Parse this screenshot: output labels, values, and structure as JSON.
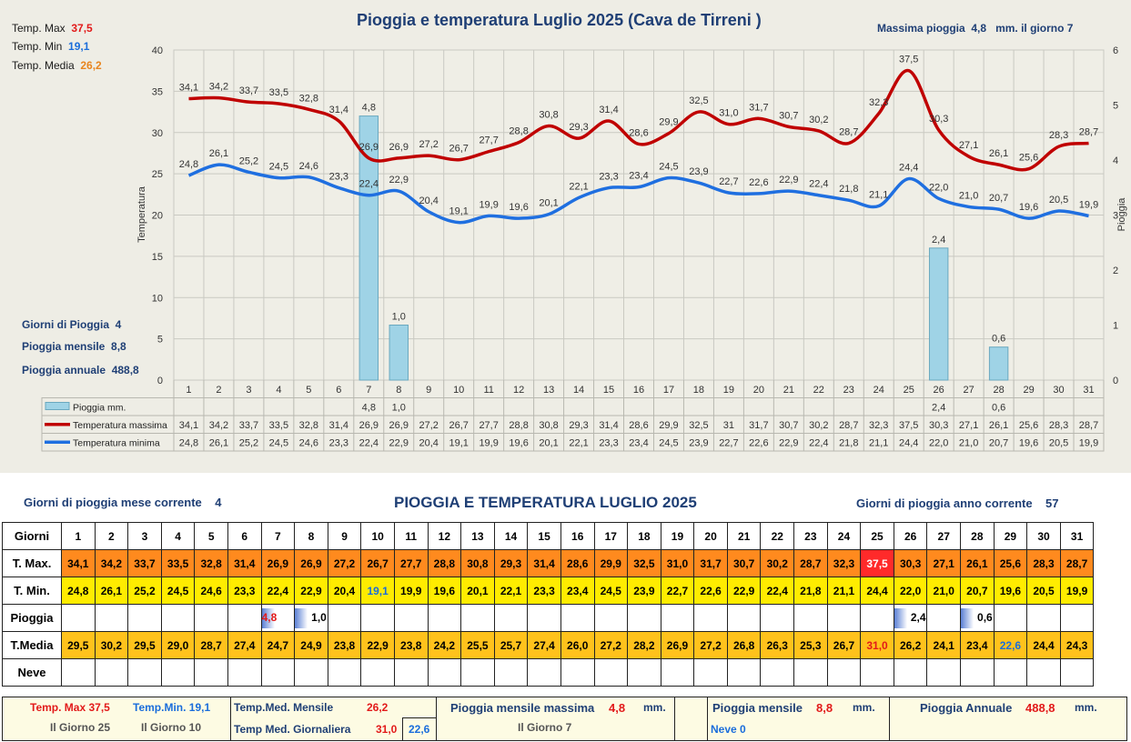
{
  "chart_title": "Pioggia e temperatura Luglio 2025 (Cava de Tirreni )",
  "max_rain_label": "Massima pioggia",
  "max_rain_value": "4,8",
  "max_rain_suffix": "mm. il giorno 7",
  "stats": {
    "tmax_label": "Temp. Max",
    "tmax_value": "37,5",
    "tmin_label": "Temp. Min",
    "tmin_value": "19,1",
    "tmed_label": "Temp. Media",
    "tmed_value": "26,2",
    "rain_days_label": "Giorni di Pioggia",
    "rain_days_value": "4",
    "monthly_label": "Pioggia mensile",
    "monthly_value": "8,8",
    "annual_label": "Pioggia annuale",
    "annual_value": "488,8"
  },
  "chart_data": {
    "type": "bar+line",
    "title": "Pioggia e temperatura Luglio 2025 (Cava de Tirreni )",
    "ylabel": "Temperatura",
    "y2label": "Pioggia",
    "ylim": [
      0,
      40
    ],
    "y2lim": [
      0,
      6
    ],
    "yticks": [
      0,
      5,
      10,
      15,
      20,
      25,
      30,
      35,
      40
    ],
    "y2ticks": [
      0,
      1,
      2,
      3,
      4,
      5,
      6
    ],
    "grid": true,
    "categories": [
      "1",
      "2",
      "3",
      "4",
      "5",
      "6",
      "7",
      "8",
      "9",
      "10",
      "11",
      "12",
      "13",
      "14",
      "15",
      "16",
      "17",
      "18",
      "19",
      "20",
      "21",
      "22",
      "23",
      "24",
      "25",
      "26",
      "27",
      "28",
      "29",
      "30",
      "31"
    ],
    "series": [
      {
        "name": "Pioggia mm.",
        "type": "bar",
        "axis": "y2",
        "color": "#9fd3e6",
        "values": [
          null,
          null,
          null,
          null,
          null,
          null,
          4.8,
          1.0,
          null,
          null,
          null,
          null,
          null,
          null,
          null,
          null,
          null,
          null,
          null,
          null,
          null,
          null,
          null,
          null,
          null,
          2.4,
          null,
          0.6,
          null,
          null,
          null
        ],
        "labels": [
          "",
          "",
          "",
          "",
          "",
          "",
          "4,8",
          "1,0",
          "",
          "",
          "",
          "",
          "",
          "",
          "",
          "",
          "",
          "",
          "",
          "",
          "",
          "",
          "",
          "",
          "",
          "2,4",
          "",
          "0,6",
          "",
          "",
          ""
        ]
      },
      {
        "name": "Temperatura massima",
        "type": "line",
        "color": "#c00000",
        "values": [
          34.1,
          34.2,
          33.7,
          33.5,
          32.8,
          31.4,
          26.9,
          26.9,
          27.2,
          26.7,
          27.7,
          28.8,
          30.8,
          29.3,
          31.4,
          28.6,
          29.9,
          32.5,
          31.0,
          31.7,
          30.7,
          30.2,
          28.7,
          32.3,
          37.5,
          30.3,
          27.1,
          26.1,
          25.6,
          28.3,
          28.7
        ],
        "labels": [
          "34,1",
          "34,2",
          "33,7",
          "33,5",
          "32,8",
          "31,4",
          "26,9",
          "26,9",
          "27,2",
          "26,7",
          "27,7",
          "28,8",
          "30,8",
          "29,3",
          "31,4",
          "28,6",
          "29,9",
          "32,5",
          "31,0",
          "31,7",
          "30,7",
          "30,2",
          "28,7",
          "32,3",
          "37,5",
          "30,3",
          "27,1",
          "26,1",
          "25,6",
          "28,3",
          "28,7"
        ],
        "table": [
          "34,1",
          "34,2",
          "33,7",
          "33,5",
          "32,8",
          "31,4",
          "26,9",
          "26,9",
          "27,2",
          "26,7",
          "27,7",
          "28,8",
          "30,8",
          "29,3",
          "31,4",
          "28,6",
          "29,9",
          "32,5",
          "31",
          "31,7",
          "30,7",
          "30,2",
          "28,7",
          "32,3",
          "37,5",
          "30,3",
          "27,1",
          "26,1",
          "25,6",
          "28,3",
          "28,7"
        ]
      },
      {
        "name": "Temperatura minima",
        "type": "line",
        "color": "#1f6fe0",
        "values": [
          24.8,
          26.1,
          25.2,
          24.5,
          24.6,
          23.3,
          22.4,
          22.9,
          20.4,
          19.1,
          19.9,
          19.6,
          20.1,
          22.1,
          23.3,
          23.4,
          24.5,
          23.9,
          22.7,
          22.6,
          22.9,
          22.4,
          21.8,
          21.1,
          24.4,
          22.0,
          21.0,
          20.7,
          19.6,
          20.5,
          19.9
        ],
        "labels": [
          "24,8",
          "26,1",
          "25,2",
          "24,5",
          "24,6",
          "23,3",
          "22,4",
          "22,9",
          "20,4",
          "19,1",
          "19,9",
          "19,6",
          "20,1",
          "22,1",
          "23,3",
          "23,4",
          "24,5",
          "23,9",
          "22,7",
          "22,6",
          "22,9",
          "22,4",
          "21,8",
          "21,1",
          "24,4",
          "22,0",
          "21,0",
          "20,7",
          "19,6",
          "20,5",
          "19,9"
        ]
      }
    ]
  },
  "lower": {
    "month_rain_label": "Giorni di pioggia mese corrente",
    "month_rain_value": "4",
    "title": "PIOGGIA E TEMPERATURA LUGLIO 2025",
    "year_rain_label": "Giorni di pioggia anno corrente",
    "year_rain_value": "57",
    "row_labels": [
      "Giorni",
      "T. Max.",
      "T. Min.",
      "Pioggia",
      "T.Media",
      "Neve"
    ],
    "tmax": [
      "34,1",
      "34,2",
      "33,7",
      "33,5",
      "32,8",
      "31,4",
      "26,9",
      "26,9",
      "27,2",
      "26,7",
      "27,7",
      "28,8",
      "30,8",
      "29,3",
      "31,4",
      "28,6",
      "29,9",
      "32,5",
      "31,0",
      "31,7",
      "30,7",
      "30,2",
      "28,7",
      "32,3",
      "37,5",
      "30,3",
      "27,1",
      "26,1",
      "25,6",
      "28,3",
      "28,7"
    ],
    "tmin": [
      "24,8",
      "26,1",
      "25,2",
      "24,5",
      "24,6",
      "23,3",
      "22,4",
      "22,9",
      "20,4",
      "19,1",
      "19,9",
      "19,6",
      "20,1",
      "22,1",
      "23,3",
      "23,4",
      "24,5",
      "23,9",
      "22,7",
      "22,6",
      "22,9",
      "22,4",
      "21,8",
      "21,1",
      "24,4",
      "22,0",
      "21,0",
      "20,7",
      "19,6",
      "20,5",
      "19,9"
    ],
    "rain": [
      "",
      "",
      "",
      "",
      "",
      "",
      "4,8",
      "1,0",
      "",
      "",
      "",
      "",
      "",
      "",
      "",
      "",
      "",
      "",
      "",
      "",
      "",
      "",
      "",
      "",
      "",
      "2,4",
      "",
      "0,6",
      "",
      "",
      ""
    ],
    "tmed": [
      "29,5",
      "30,2",
      "29,5",
      "29,0",
      "28,7",
      "27,4",
      "24,7",
      "24,9",
      "23,8",
      "22,9",
      "23,8",
      "24,2",
      "25,5",
      "25,7",
      "27,4",
      "26,0",
      "27,2",
      "28,2",
      "26,9",
      "27,2",
      "26,8",
      "26,3",
      "25,3",
      "26,7",
      "31,0",
      "26,2",
      "24,1",
      "23,4",
      "22,6",
      "24,4",
      "24,3"
    ],
    "highlight": {
      "tmax_max_day": 25,
      "tmin_min_day": 10,
      "tmed_max_day": 25,
      "tmed_min_day": 29
    }
  },
  "footer": {
    "tmax_label": "Temp. Max",
    "tmax_value": "37,5",
    "tmin_label": "Temp.Min.",
    "tmin_value": "19,1",
    "tmax_day": "Il Giorno 25",
    "tmin_day": "Il Giorno 10",
    "tmed_month_label": "Temp.Med. Mensile",
    "tmed_month_value": "26,2",
    "tmed_daily_label": "Temp Med. Giornaliera",
    "tmed_daily_max": "31,0",
    "tmed_daily_min": "22,6",
    "rain_max_label": "Pioggia mensile massima",
    "rain_max_value": "4,8",
    "rain_max_unit": "mm.",
    "rain_max_day": "Il Giorno  7",
    "rain_month_label": "Pioggia mensile",
    "rain_month_value": "8,8",
    "rain_month_unit": "mm.",
    "snow_label": "Neve",
    "snow_value": "0",
    "rain_year_label": "Pioggia Annuale",
    "rain_year_value": "488,8",
    "rain_year_unit": "mm."
  }
}
